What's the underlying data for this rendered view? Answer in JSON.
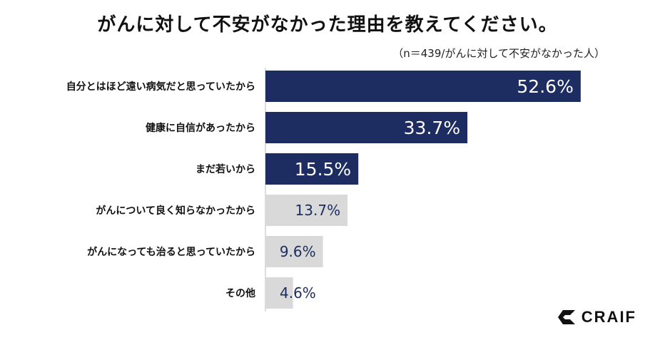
{
  "title": "がんに対して不安がなかった理由を教えてください。",
  "subtitle": "（n＝439/がんに対して不安がなかった人）",
  "logo": {
    "text": "CRAIF",
    "icon": "craif-logo-mark-icon"
  },
  "colors": {
    "highlight": "#1d2d61",
    "muted": "#d9d9d9",
    "label_on_dark": "#ffffff",
    "label_on_light": "#1d2d61"
  },
  "chart_data": {
    "type": "bar",
    "orientation": "horizontal",
    "categories": [
      "自分とはほど遠い病気だと思っていたから",
      "健康に自信があったから",
      "まだ若いから",
      "がんについて良く知らなかったから",
      "がんになっても治ると思っていたから",
      "その他"
    ],
    "values": [
      52.6,
      33.7,
      15.5,
      13.7,
      9.6,
      4.6
    ],
    "value_labels": [
      "52.6%",
      "33.7%",
      "15.5%",
      "13.7%",
      "9.6%",
      "4.6%"
    ],
    "highlighted": [
      true,
      true,
      true,
      false,
      false,
      false
    ],
    "xlim": [
      0,
      55
    ],
    "grid": false,
    "legend": "none"
  }
}
